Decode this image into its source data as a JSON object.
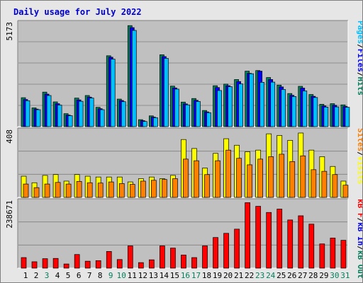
{
  "title": "Daily usage for July 2022",
  "colors": {
    "background": "#e6e6e6",
    "panel": "#c0c0c0",
    "hits": "#00805c",
    "files": "#0000ff",
    "pages": "#00c0ff",
    "visits": "#ffff00",
    "sites": "#ff8000",
    "kbin": "#0000ff",
    "kbout": "#00805c",
    "kbf": "#ff0000",
    "weekday": "#000000",
    "weekend": "#00805c"
  },
  "chart_data": [
    {
      "type": "bar",
      "panel": "top",
      "ymax_label": "5173",
      "ylim": [
        0,
        5173
      ],
      "legend": [
        "Pages",
        "/",
        "Files",
        "/",
        "Hits"
      ],
      "categories": [
        "1",
        "2",
        "3",
        "4",
        "5",
        "6",
        "7",
        "8",
        "9",
        "10",
        "11",
        "12",
        "13",
        "14",
        "15",
        "16",
        "17",
        "18",
        "19",
        "20",
        "21",
        "22",
        "23",
        "24",
        "25",
        "26",
        "27",
        "28",
        "29",
        "30",
        "31"
      ],
      "weekend_days": [
        "3",
        "9",
        "10",
        "16",
        "17",
        "23",
        "24",
        "30",
        "31"
      ],
      "series": [
        {
          "name": "Hits",
          "values": [
            1450,
            940,
            1730,
            1240,
            650,
            1430,
            1560,
            970,
            3550,
            1380,
            5060,
            350,
            540,
            3600,
            2030,
            1230,
            1410,
            810,
            2050,
            2130,
            2360,
            2780,
            2810,
            2460,
            2080,
            1660,
            2020,
            1610,
            1120,
            1150,
            1090
          ]
        },
        {
          "name": "Files",
          "values": [
            1360,
            880,
            1630,
            1150,
            580,
            1340,
            1480,
            900,
            3480,
            1310,
            4960,
            300,
            480,
            3510,
            1940,
            1140,
            1320,
            740,
            1960,
            2050,
            2260,
            2670,
            2780,
            2360,
            1990,
            1570,
            1930,
            1520,
            1040,
            1070,
            1010
          ]
        },
        {
          "name": "Pages",
          "values": [
            1300,
            850,
            1560,
            1080,
            550,
            1270,
            1430,
            850,
            3380,
            1250,
            4820,
            260,
            450,
            3420,
            1880,
            1090,
            1260,
            700,
            1810,
            2000,
            2140,
            2650,
            2220,
            2230,
            1860,
            1510,
            1790,
            1460,
            980,
            990,
            970
          ]
        }
      ]
    },
    {
      "type": "bar",
      "panel": "middle",
      "ymax_label": "408",
      "ylim": [
        0,
        408
      ],
      "legend": [
        "Sites",
        "/",
        "Visits"
      ],
      "categories": [
        "1",
        "2",
        "3",
        "4",
        "5",
        "6",
        "7",
        "8",
        "9",
        "10",
        "11",
        "12",
        "13",
        "14",
        "15",
        "16",
        "17",
        "18",
        "19",
        "20",
        "21",
        "22",
        "23",
        "24",
        "25",
        "26",
        "27",
        "28",
        "29",
        "30",
        "31"
      ],
      "series": [
        {
          "name": "Visits",
          "values": [
            130,
            90,
            135,
            140,
            100,
            140,
            130,
            125,
            125,
            125,
            95,
            115,
            125,
            115,
            135,
            355,
            300,
            180,
            270,
            360,
            320,
            280,
            290,
            390,
            380,
            350,
            395,
            290,
            250,
            190,
            100
          ]
        },
        {
          "name": "Sites",
          "values": [
            82,
            60,
            82,
            92,
            82,
            98,
            90,
            88,
            95,
            85,
            80,
            100,
            105,
            110,
            115,
            235,
            225,
            140,
            225,
            290,
            240,
            200,
            235,
            250,
            265,
            220,
            255,
            170,
            160,
            140,
            75
          ]
        }
      ]
    },
    {
      "type": "bar",
      "panel": "bottom",
      "ymax_label": "238671",
      "ylim": [
        0,
        238671
      ],
      "legend": [
        "kB F",
        "/",
        "kB In",
        "/",
        "kB Out"
      ],
      "categories": [
        "1",
        "2",
        "3",
        "4",
        "5",
        "6",
        "7",
        "8",
        "9",
        "10",
        "11",
        "12",
        "13",
        "14",
        "15",
        "16",
        "17",
        "18",
        "19",
        "20",
        "21",
        "22",
        "23",
        "24",
        "25",
        "26",
        "27",
        "28",
        "29",
        "30",
        "31"
      ],
      "series": [
        {
          "name": "kB F",
          "values": [
            38000,
            23000,
            34000,
            35000,
            15000,
            49000,
            25000,
            27000,
            60000,
            31000,
            80000,
            20000,
            30000,
            80000,
            72000,
            47000,
            38000,
            80000,
            110000,
            125000,
            140000,
            235000,
            222000,
            200000,
            212000,
            173000,
            188000,
            158000,
            87000,
            108000,
            100000
          ]
        }
      ]
    }
  ]
}
